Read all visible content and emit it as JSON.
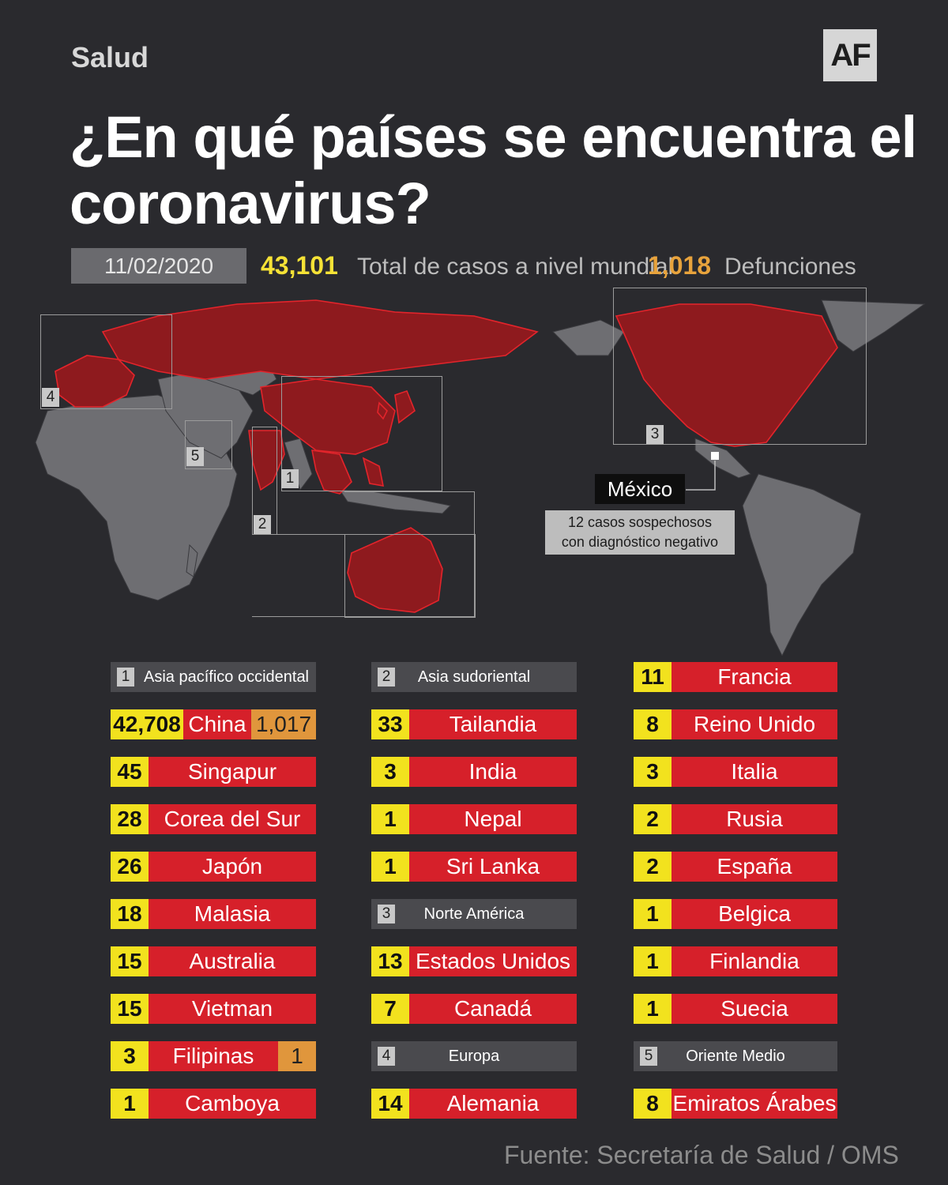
{
  "header": {
    "section": "Salud",
    "logo": "AF"
  },
  "title": "¿En qué países se encuentra el coronavirus?",
  "summary": {
    "date": "11/02/2020",
    "total_cases": "43,101",
    "total_cases_label": "Total de casos a nivel mundial",
    "deaths": "1,018",
    "deaths_label": "Defunciones"
  },
  "map": {
    "regions": [
      "1",
      "2",
      "3",
      "4",
      "5"
    ],
    "mexico": {
      "label": "México",
      "note_line1": "12 casos sospechosos",
      "note_line2": "con diagnóstico negativo"
    },
    "colors": {
      "affected": "#8e1a1e",
      "unaffected": "#6e6e72",
      "border": "#e3242b"
    }
  },
  "columns": {
    "c1": {
      "header": {
        "num": "1",
        "label": "Asia pacífico occidental"
      },
      "rows": [
        {
          "num": "42,708",
          "country": "China",
          "deaths": "1,017"
        },
        {
          "num": "45",
          "country": "Singapur"
        },
        {
          "num": "28",
          "country": "Corea del Sur"
        },
        {
          "num": "26",
          "country": "Japón"
        },
        {
          "num": "18",
          "country": "Malasia"
        },
        {
          "num": "15",
          "country": "Australia"
        },
        {
          "num": "15",
          "country": "Vietman"
        },
        {
          "num": "3",
          "country": "Filipinas",
          "deaths": "1"
        },
        {
          "num": "1",
          "country": "Camboya"
        }
      ]
    },
    "c2": {
      "header1": {
        "num": "2",
        "label": "Asia sudoriental"
      },
      "rows1": [
        {
          "num": "33",
          "country": "Tailandia"
        },
        {
          "num": "3",
          "country": "India"
        },
        {
          "num": "1",
          "country": "Nepal"
        },
        {
          "num": "1",
          "country": "Sri Lanka"
        }
      ],
      "header2": {
        "num": "3",
        "label": "Norte América"
      },
      "rows2": [
        {
          "num": "13",
          "country": "Estados Unidos"
        },
        {
          "num": "7",
          "country": "Canadá"
        }
      ],
      "header3": {
        "num": "4",
        "label": "Europa"
      },
      "rows3": [
        {
          "num": "14",
          "country": "Alemania"
        }
      ]
    },
    "c3": {
      "rows1": [
        {
          "num": "11",
          "country": "Francia"
        },
        {
          "num": "8",
          "country": "Reino Unido"
        },
        {
          "num": "3",
          "country": "Italia"
        },
        {
          "num": "2",
          "country": "Rusia"
        },
        {
          "num": "2",
          "country": "España"
        },
        {
          "num": "1",
          "country": "Belgica"
        },
        {
          "num": "1",
          "country": "Finlandia"
        },
        {
          "num": "1",
          "country": "Suecia"
        }
      ],
      "header": {
        "num": "5",
        "label": "Oriente Medio"
      },
      "rows2": [
        {
          "num": "8",
          "country": "Emiratos Árabes"
        }
      ]
    }
  },
  "source": "Fuente: Secretaría de Salud / OMS"
}
